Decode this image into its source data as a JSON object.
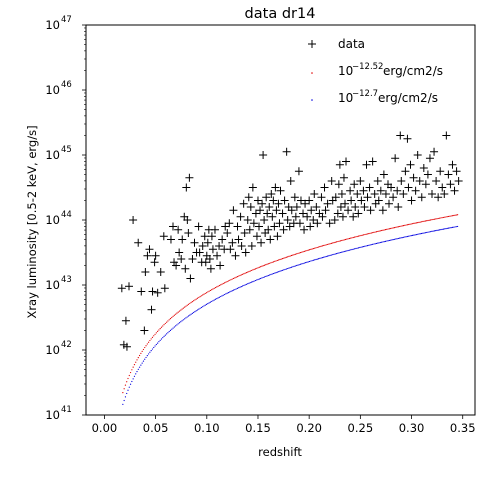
{
  "chart_data": {
    "type": "scatter",
    "title": "data dr14",
    "xlabel": "redshift",
    "ylabel": "Xray luminosity [0.5-2 keV, erg/s]",
    "xlim": [
      -0.018,
      0.362
    ],
    "ylim_log10": [
      41,
      47
    ],
    "yscale": "log",
    "x_ticks": [
      0.0,
      0.05,
      0.1,
      0.15,
      0.2,
      0.25,
      0.3,
      0.35
    ],
    "x_tick_labels": [
      "0.00",
      "0.05",
      "0.10",
      "0.15",
      "0.20",
      "0.25",
      "0.30",
      "0.35"
    ],
    "y_tick_base": "10",
    "y_tick_exponents": [
      "41",
      "42",
      "43",
      "44",
      "45",
      "46",
      "47"
    ],
    "legend": {
      "position": "upper right",
      "items": [
        {
          "label": "data",
          "marker": "+",
          "color": "#000000"
        },
        {
          "label_prefix": "10",
          "label_exp": "−12.52",
          "label_suffix": "erg/cm2/s",
          "marker": "dot",
          "color": "#e00000"
        },
        {
          "label_prefix": "10",
          "label_exp": "−12.7",
          "label_suffix": "erg/cm2/s",
          "marker": "dot",
          "color": "#0000e0"
        }
      ]
    },
    "series": [
      {
        "name": "data",
        "marker": "+",
        "color": "#000000",
        "points": [
          [
            0.017,
            42.95
          ],
          [
            0.019,
            42.08
          ],
          [
            0.021,
            42.45
          ],
          [
            0.022,
            42.05
          ],
          [
            0.024,
            42.98
          ],
          [
            0.028,
            44.0
          ],
          [
            0.033,
            43.65
          ],
          [
            0.036,
            42.9
          ],
          [
            0.039,
            42.3
          ],
          [
            0.04,
            43.2
          ],
          [
            0.042,
            43.45
          ],
          [
            0.044,
            43.55
          ],
          [
            0.046,
            42.62
          ],
          [
            0.047,
            42.9
          ],
          [
            0.049,
            43.35
          ],
          [
            0.05,
            43.45
          ],
          [
            0.052,
            42.88
          ],
          [
            0.055,
            43.2
          ],
          [
            0.058,
            43.75
          ],
          [
            0.059,
            42.95
          ],
          [
            0.065,
            43.7
          ],
          [
            0.067,
            43.9
          ],
          [
            0.068,
            43.35
          ],
          [
            0.07,
            43.3
          ],
          [
            0.072,
            43.85
          ],
          [
            0.073,
            43.5
          ],
          [
            0.075,
            43.4
          ],
          [
            0.076,
            43.7
          ],
          [
            0.078,
            44.05
          ],
          [
            0.079,
            43.25
          ],
          [
            0.08,
            44.5
          ],
          [
            0.081,
            44.0
          ],
          [
            0.082,
            43.8
          ],
          [
            0.083,
            44.65
          ],
          [
            0.084,
            43.1
          ],
          [
            0.086,
            43.4
          ],
          [
            0.088,
            43.65
          ],
          [
            0.09,
            43.5
          ],
          [
            0.092,
            43.9
          ],
          [
            0.093,
            43.5
          ],
          [
            0.095,
            43.35
          ],
          [
            0.096,
            43.6
          ],
          [
            0.098,
            43.75
          ],
          [
            0.099,
            43.35
          ],
          [
            0.1,
            43.45
          ],
          [
            0.101,
            43.65
          ],
          [
            0.102,
            43.85
          ],
          [
            0.103,
            43.4
          ],
          [
            0.104,
            43.25
          ],
          [
            0.105,
            43.75
          ],
          [
            0.106,
            43.55
          ],
          [
            0.108,
            43.85
          ],
          [
            0.11,
            43.45
          ],
          [
            0.112,
            43.6
          ],
          [
            0.113,
            43.3
          ],
          [
            0.115,
            43.7
          ],
          [
            0.117,
            43.55
          ],
          [
            0.118,
            43.9
          ],
          [
            0.12,
            43.8
          ],
          [
            0.122,
            43.95
          ],
          [
            0.123,
            43.55
          ],
          [
            0.125,
            43.65
          ],
          [
            0.126,
            44.15
          ],
          [
            0.128,
            43.45
          ],
          [
            0.13,
            43.9
          ],
          [
            0.131,
            43.7
          ],
          [
            0.133,
            44.05
          ],
          [
            0.134,
            43.6
          ],
          [
            0.136,
            44.25
          ],
          [
            0.137,
            43.8
          ],
          [
            0.138,
            43.5
          ],
          [
            0.14,
            44.0
          ],
          [
            0.141,
            44.35
          ],
          [
            0.142,
            43.85
          ],
          [
            0.143,
            44.2
          ],
          [
            0.144,
            43.6
          ],
          [
            0.145,
            44.5
          ],
          [
            0.146,
            43.95
          ],
          [
            0.148,
            44.1
          ],
          [
            0.149,
            43.75
          ],
          [
            0.15,
            44.3
          ],
          [
            0.151,
            43.9
          ],
          [
            0.152,
            44.15
          ],
          [
            0.153,
            43.65
          ],
          [
            0.154,
            44.25
          ],
          [
            0.155,
            45.0
          ],
          [
            0.156,
            44.0
          ],
          [
            0.157,
            43.8
          ],
          [
            0.158,
            44.35
          ],
          [
            0.159,
            44.1
          ],
          [
            0.16,
            43.85
          ],
          [
            0.161,
            44.2
          ],
          [
            0.162,
            43.7
          ],
          [
            0.163,
            44.4
          ],
          [
            0.164,
            44.05
          ],
          [
            0.165,
            44.3
          ],
          [
            0.166,
            43.9
          ],
          [
            0.167,
            44.5
          ],
          [
            0.168,
            44.15
          ],
          [
            0.169,
            43.75
          ],
          [
            0.17,
            44.25
          ],
          [
            0.171,
            43.95
          ],
          [
            0.172,
            44.45
          ],
          [
            0.174,
            44.1
          ],
          [
            0.175,
            43.85
          ],
          [
            0.176,
            44.3
          ],
          [
            0.178,
            45.05
          ],
          [
            0.179,
            44.0
          ],
          [
            0.18,
            44.2
          ],
          [
            0.181,
            43.9
          ],
          [
            0.182,
            44.6
          ],
          [
            0.183,
            44.15
          ],
          [
            0.185,
            43.95
          ],
          [
            0.186,
            44.35
          ],
          [
            0.187,
            44.05
          ],
          [
            0.188,
            44.2
          ],
          [
            0.19,
            44.75
          ],
          [
            0.191,
            43.95
          ],
          [
            0.192,
            44.3
          ],
          [
            0.194,
            44.1
          ],
          [
            0.195,
            43.85
          ],
          [
            0.196,
            44.25
          ],
          [
            0.198,
            44.05
          ],
          [
            0.2,
            44.3
          ],
          [
            0.201,
            43.9
          ],
          [
            0.202,
            44.15
          ],
          [
            0.204,
            44.0
          ],
          [
            0.205,
            44.4
          ],
          [
            0.207,
            44.2
          ],
          [
            0.208,
            43.95
          ],
          [
            0.21,
            44.1
          ],
          [
            0.212,
            44.35
          ],
          [
            0.213,
            44.05
          ],
          [
            0.215,
            44.5
          ],
          [
            0.216,
            44.15
          ],
          [
            0.218,
            44.25
          ],
          [
            0.22,
            43.95
          ],
          [
            0.222,
            44.6
          ],
          [
            0.223,
            44.3
          ],
          [
            0.225,
            44.0
          ],
          [
            0.226,
            44.35
          ],
          [
            0.228,
            44.1
          ],
          [
            0.229,
            44.55
          ],
          [
            0.23,
            44.85
          ],
          [
            0.231,
            44.2
          ],
          [
            0.232,
            44.4
          ],
          [
            0.233,
            44.05
          ],
          [
            0.234,
            44.65
          ],
          [
            0.235,
            44.25
          ],
          [
            0.236,
            44.9
          ],
          [
            0.238,
            44.15
          ],
          [
            0.24,
            44.45
          ],
          [
            0.241,
            44.3
          ],
          [
            0.243,
            44.05
          ],
          [
            0.244,
            44.55
          ],
          [
            0.245,
            44.2
          ],
          [
            0.247,
            44.4
          ],
          [
            0.248,
            44.1
          ],
          [
            0.25,
            44.6
          ],
          [
            0.251,
            44.3
          ],
          [
            0.253,
            44.45
          ],
          [
            0.254,
            44.2
          ],
          [
            0.256,
            44.85
          ],
          [
            0.257,
            44.35
          ],
          [
            0.259,
            44.5
          ],
          [
            0.26,
            44.15
          ],
          [
            0.262,
            44.9
          ],
          [
            0.264,
            44.4
          ],
          [
            0.265,
            44.25
          ],
          [
            0.267,
            44.6
          ],
          [
            0.268,
            44.3
          ],
          [
            0.27,
            44.45
          ],
          [
            0.272,
            44.15
          ],
          [
            0.273,
            44.7
          ],
          [
            0.275,
            44.4
          ],
          [
            0.277,
            44.55
          ],
          [
            0.278,
            44.25
          ],
          [
            0.28,
            44.5
          ],
          [
            0.282,
            44.35
          ],
          [
            0.284,
            44.95
          ],
          [
            0.286,
            44.45
          ],
          [
            0.287,
            44.2
          ],
          [
            0.289,
            45.3
          ],
          [
            0.29,
            44.6
          ],
          [
            0.292,
            44.4
          ],
          [
            0.294,
            44.75
          ],
          [
            0.296,
            45.25
          ],
          [
            0.297,
            44.5
          ],
          [
            0.299,
            44.85
          ],
          [
            0.3,
            44.3
          ],
          [
            0.302,
            44.65
          ],
          [
            0.304,
            44.45
          ],
          [
            0.306,
            45.0
          ],
          [
            0.308,
            44.6
          ],
          [
            0.31,
            44.35
          ],
          [
            0.312,
            44.8
          ],
          [
            0.314,
            44.55
          ],
          [
            0.316,
            44.7
          ],
          [
            0.318,
            44.95
          ],
          [
            0.32,
            44.4
          ],
          [
            0.322,
            45.05
          ],
          [
            0.324,
            44.6
          ],
          [
            0.326,
            44.35
          ],
          [
            0.328,
            44.75
          ],
          [
            0.33,
            44.5
          ],
          [
            0.332,
            44.4
          ],
          [
            0.334,
            45.3
          ],
          [
            0.336,
            44.7
          ],
          [
            0.338,
            44.55
          ],
          [
            0.34,
            44.85
          ],
          [
            0.342,
            44.45
          ],
          [
            0.344,
            44.75
          ],
          [
            0.346,
            44.6
          ]
        ]
      },
      {
        "name_exp": "−12.52",
        "marker": "dot",
        "color": "#e00000",
        "curve_flux_log10": -12.52,
        "x_range": [
          0.018,
          0.345
        ]
      },
      {
        "name_exp": "−12.7",
        "marker": "dot",
        "color": "#0000e0",
        "curve_flux_log10": -12.7,
        "x_range": [
          0.018,
          0.345
        ]
      }
    ]
  }
}
